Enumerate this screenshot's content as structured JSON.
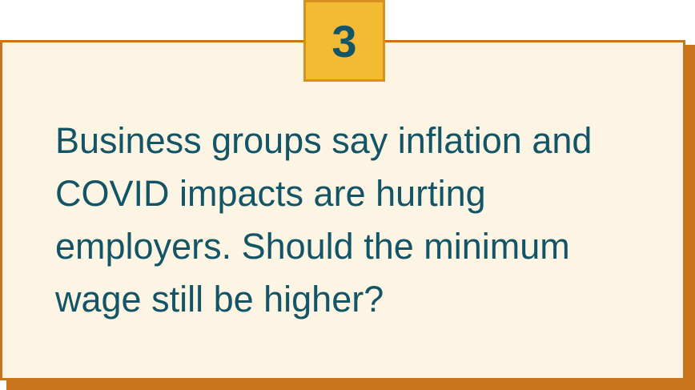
{
  "badge": {
    "number": "3"
  },
  "question": {
    "text": "Business groups say inflation and COVID impacts are hurting employers. Should the minimum wage still be higher?"
  },
  "colors": {
    "card_background": "#fcf5e4",
    "card_border": "#c8741a",
    "badge_background": "#f3bb33",
    "text": "#135466"
  }
}
